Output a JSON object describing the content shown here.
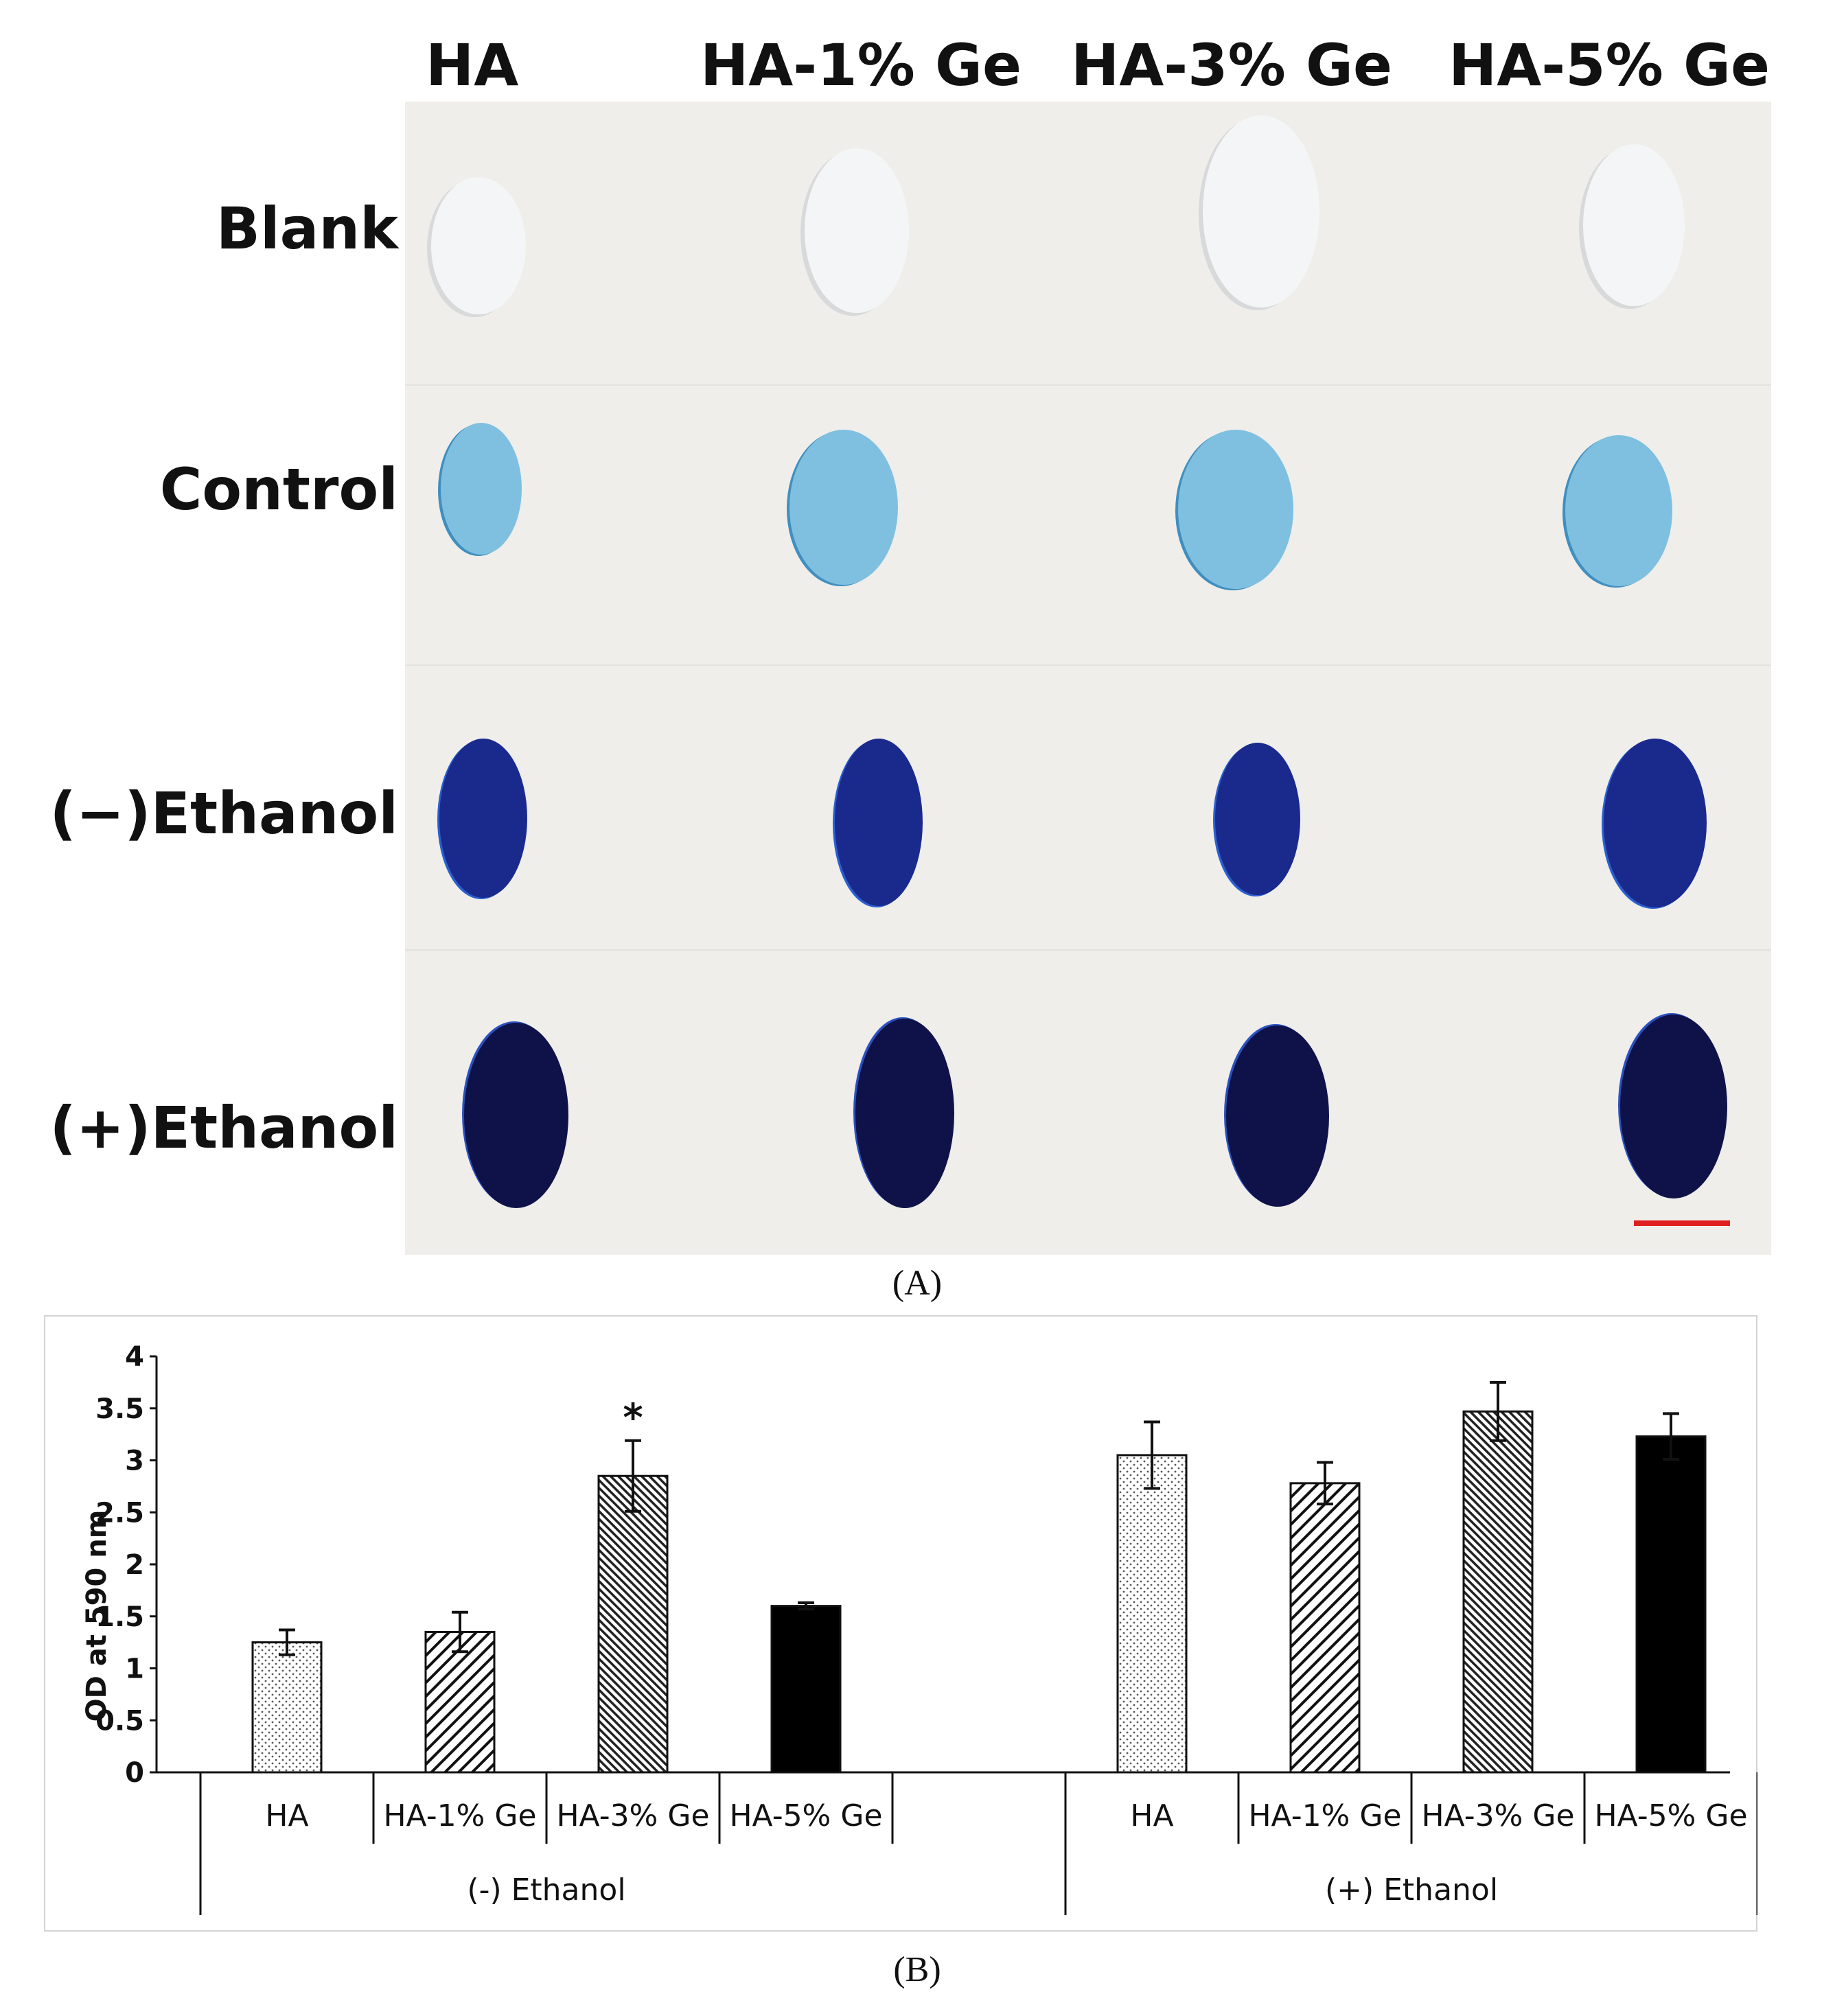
{
  "panel_a": {
    "column_labels": [
      "HA",
      "HA-1% Ge",
      "HA-3% Ge",
      "HA-5% Ge"
    ],
    "row_labels": [
      "Blank",
      "Control",
      "(−)Ethanol",
      "(+)Ethanol"
    ],
    "caption": "(A)",
    "colors": {
      "blank": "#f4f5f6",
      "control": "#7fc0e0",
      "minus_ethanol": "#1a2a8c",
      "plus_ethanol": "#0e1248",
      "scale_bar": "#e02020"
    }
  },
  "panel_b": {
    "caption": "(B)"
  },
  "chart_data": {
    "type": "bar",
    "ylabel": "OD at 590 nm",
    "ylim": [
      0,
      4
    ],
    "yticks": [
      "0",
      "0.5",
      "1",
      "1.5",
      "2",
      "2.5",
      "3",
      "3.5",
      "4"
    ],
    "groups": [
      {
        "name": "(-) Ethanol",
        "categories": [
          "HA",
          "HA-1% Ge",
          "HA-3% Ge",
          "HA-5% Ge"
        ],
        "values": [
          1.25,
          1.35,
          2.85,
          1.6
        ],
        "errors": [
          0.12,
          0.19,
          0.34,
          0.03
        ],
        "annotations": [
          "",
          "",
          "*",
          ""
        ]
      },
      {
        "name": "(+) Ethanol",
        "categories": [
          "HA",
          "HA-1% Ge",
          "HA-3% Ge",
          "HA-5% Ge"
        ],
        "values": [
          3.05,
          2.78,
          3.47,
          3.23
        ],
        "errors": [
          0.32,
          0.2,
          0.28,
          0.22
        ],
        "annotations": [
          "",
          "",
          "",
          ""
        ]
      }
    ],
    "bar_fills": [
      "dotted",
      "hatched-sparse",
      "hatched-dense",
      "solid-black"
    ]
  }
}
